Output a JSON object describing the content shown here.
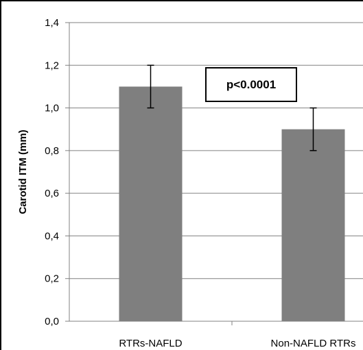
{
  "chart_data": {
    "type": "bar",
    "title": "",
    "xlabel": "",
    "ylabel": "Carotid ITM (mm)",
    "ylim": [
      0,
      1.4
    ],
    "y_ticks": [
      "0,0",
      "0,2",
      "0,4",
      "0,6",
      "0,8",
      "1,0",
      "1,2",
      "1,4"
    ],
    "y_tick_values": [
      0,
      0.2,
      0.4,
      0.6,
      0.8,
      1.0,
      1.2,
      1.4
    ],
    "grid": true,
    "categories": [
      "RTRs-NAFLD",
      "Non-NAFLD RTRs"
    ],
    "values": [
      1.1,
      0.9
    ],
    "error_low": [
      1.0,
      0.8
    ],
    "error_high": [
      1.2,
      1.0
    ],
    "bar_color": "#7f7f7f",
    "annotation": "p<0.0001"
  }
}
